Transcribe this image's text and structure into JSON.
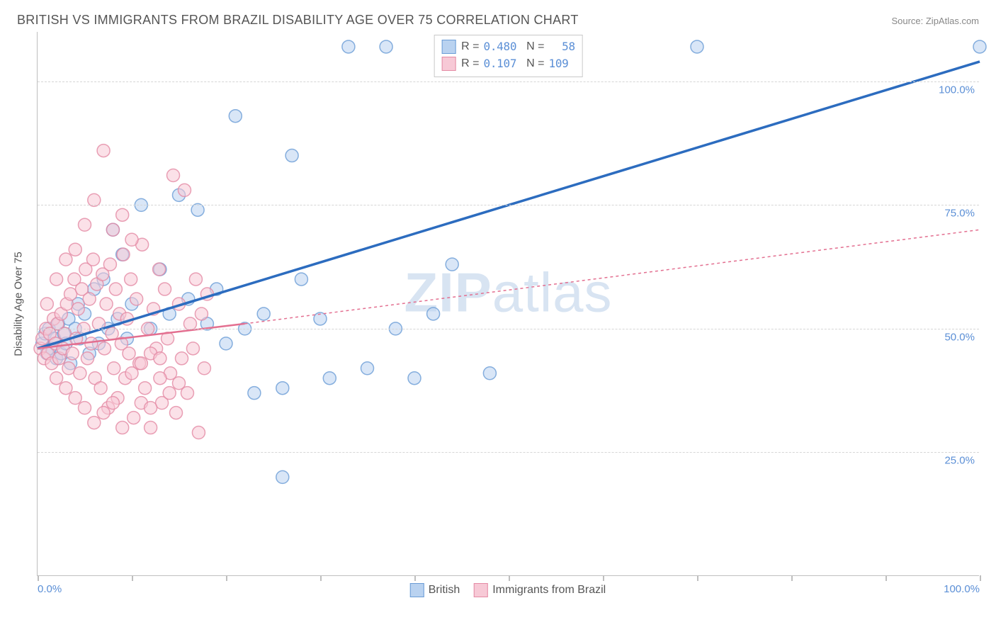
{
  "title": "BRITISH VS IMMIGRANTS FROM BRAZIL DISABILITY AGE OVER 75 CORRELATION CHART",
  "source_label": "Source: ZipAtlas.com",
  "y_axis_title": "Disability Age Over 75",
  "watermark": {
    "bold": "ZIP",
    "rest": "atlas"
  },
  "chart": {
    "type": "scatter",
    "xlim": [
      0,
      100
    ],
    "ylim": [
      0,
      110
    ],
    "yticks": [
      {
        "v": 25,
        "label": "25.0%"
      },
      {
        "v": 50,
        "label": "50.0%"
      },
      {
        "v": 75,
        "label": "75.0%"
      },
      {
        "v": 100,
        "label": "100.0%"
      }
    ],
    "xticks_at": [
      0,
      10,
      20,
      30,
      40,
      50,
      60,
      70,
      80,
      90,
      100
    ],
    "xlabels": [
      {
        "v": 0,
        "label": "0.0%"
      },
      {
        "v": 100,
        "label": "100.0%"
      }
    ],
    "background_color": "#ffffff",
    "grid_color": "#d6d6d6",
    "axis_color": "#bfbfbf",
    "marker_radius": 9,
    "marker_opacity": 0.55,
    "series": [
      {
        "name": "British",
        "color_fill": "#b9d2f0",
        "color_stroke": "#6a9cd6",
        "line_color": "#2c6cbf",
        "line_width": 3.5,
        "line_dash": "none",
        "R": "0.480",
        "N": "58",
        "trend": {
          "x0": 0,
          "y0": 46,
          "x1": 100,
          "y1": 104
        },
        "points": [
          [
            0.5,
            47
          ],
          [
            0.8,
            49
          ],
          [
            1.0,
            45
          ],
          [
            1.2,
            50
          ],
          [
            1.5,
            46
          ],
          [
            1.8,
            48
          ],
          [
            2,
            44
          ],
          [
            2.2,
            51
          ],
          [
            2.5,
            45
          ],
          [
            2.8,
            49
          ],
          [
            3,
            47
          ],
          [
            3.3,
            52
          ],
          [
            3.5,
            43
          ],
          [
            4,
            50
          ],
          [
            4.3,
            55
          ],
          [
            4.5,
            48
          ],
          [
            5,
            53
          ],
          [
            5.5,
            45
          ],
          [
            6,
            58
          ],
          [
            6.5,
            47
          ],
          [
            7,
            60
          ],
          [
            7.5,
            50
          ],
          [
            8,
            70
          ],
          [
            8.5,
            52
          ],
          [
            9,
            65
          ],
          [
            9.5,
            48
          ],
          [
            10,
            55
          ],
          [
            11,
            75
          ],
          [
            12,
            50
          ],
          [
            13,
            62
          ],
          [
            14,
            53
          ],
          [
            15,
            77
          ],
          [
            16,
            56
          ],
          [
            17,
            74
          ],
          [
            18,
            51
          ],
          [
            19,
            58
          ],
          [
            20,
            47
          ],
          [
            21,
            93
          ],
          [
            22,
            50
          ],
          [
            23,
            37
          ],
          [
            24,
            53
          ],
          [
            26,
            38
          ],
          [
            27,
            85
          ],
          [
            28,
            60
          ],
          [
            30,
            52
          ],
          [
            31,
            40
          ],
          [
            33,
            107
          ],
          [
            35,
            42
          ],
          [
            37,
            107
          ],
          [
            38,
            50
          ],
          [
            40,
            40
          ],
          [
            42,
            53
          ],
          [
            44,
            63
          ],
          [
            47,
            107
          ],
          [
            48,
            41
          ],
          [
            70,
            107
          ],
          [
            26,
            20
          ],
          [
            100,
            107
          ]
        ]
      },
      {
        "name": "Immigrants from Brazil",
        "color_fill": "#f7c9d6",
        "color_stroke": "#e48aa4",
        "line_color": "#e36f90",
        "line_width": 2.5,
        "line_dash": "4,4",
        "R": "0.107",
        "N": "109",
        "trend_solid": {
          "x0": 0,
          "y0": 46,
          "x1": 22,
          "y1": 51
        },
        "trend_dash": {
          "x0": 22,
          "y0": 51,
          "x1": 100,
          "y1": 70
        },
        "points": [
          [
            0.3,
            46
          ],
          [
            0.5,
            48
          ],
          [
            0.7,
            44
          ],
          [
            0.9,
            50
          ],
          [
            1.1,
            45
          ],
          [
            1.3,
            49
          ],
          [
            1.5,
            43
          ],
          [
            1.7,
            52
          ],
          [
            1.9,
            47
          ],
          [
            2.1,
            51
          ],
          [
            2.3,
            44
          ],
          [
            2.5,
            53
          ],
          [
            2.7,
            46
          ],
          [
            2.9,
            49
          ],
          [
            3.1,
            55
          ],
          [
            3.3,
            42
          ],
          [
            3.5,
            57
          ],
          [
            3.7,
            45
          ],
          [
            3.9,
            60
          ],
          [
            4.1,
            48
          ],
          [
            4.3,
            54
          ],
          [
            4.5,
            41
          ],
          [
            4.7,
            58
          ],
          [
            4.9,
            50
          ],
          [
            5.1,
            62
          ],
          [
            5.3,
            44
          ],
          [
            5.5,
            56
          ],
          [
            5.7,
            47
          ],
          [
            5.9,
            64
          ],
          [
            6.1,
            40
          ],
          [
            6.3,
            59
          ],
          [
            6.5,
            51
          ],
          [
            6.7,
            38
          ],
          [
            6.9,
            61
          ],
          [
            7.1,
            46
          ],
          [
            7.3,
            55
          ],
          [
            7.5,
            34
          ],
          [
            7.7,
            63
          ],
          [
            7.9,
            49
          ],
          [
            8.1,
            42
          ],
          [
            8.3,
            58
          ],
          [
            8.5,
            36
          ],
          [
            8.7,
            53
          ],
          [
            8.9,
            47
          ],
          [
            9.1,
            65
          ],
          [
            9.3,
            40
          ],
          [
            9.5,
            52
          ],
          [
            9.7,
            45
          ],
          [
            9.9,
            60
          ],
          [
            10.2,
            32
          ],
          [
            10.5,
            56
          ],
          [
            10.8,
            43
          ],
          [
            11.1,
            67
          ],
          [
            11.4,
            38
          ],
          [
            11.7,
            50
          ],
          [
            12,
            30
          ],
          [
            12.3,
            54
          ],
          [
            12.6,
            46
          ],
          [
            12.9,
            62
          ],
          [
            13.2,
            35
          ],
          [
            13.5,
            58
          ],
          [
            13.8,
            48
          ],
          [
            14.1,
            41
          ],
          [
            14.4,
            81
          ],
          [
            14.7,
            33
          ],
          [
            15,
            55
          ],
          [
            15.3,
            44
          ],
          [
            15.6,
            78
          ],
          [
            15.9,
            37
          ],
          [
            16.2,
            51
          ],
          [
            16.5,
            46
          ],
          [
            16.8,
            60
          ],
          [
            17.1,
            29
          ],
          [
            17.4,
            53
          ],
          [
            17.7,
            42
          ],
          [
            18,
            57
          ],
          [
            7,
            86
          ],
          [
            8,
            70
          ],
          [
            9,
            73
          ],
          [
            10,
            68
          ],
          [
            6,
            76
          ],
          [
            5,
            71
          ],
          [
            4,
            66
          ],
          [
            3,
            64
          ],
          [
            2,
            60
          ],
          [
            1,
            55
          ],
          [
            11,
            35
          ],
          [
            12,
            34
          ],
          [
            13,
            40
          ],
          [
            14,
            37
          ],
          [
            15,
            39
          ],
          [
            6,
            31
          ],
          [
            7,
            33
          ],
          [
            8,
            35
          ],
          [
            9,
            30
          ],
          [
            4,
            36
          ],
          [
            3,
            38
          ],
          [
            2,
            40
          ],
          [
            5,
            34
          ],
          [
            10,
            41
          ],
          [
            11,
            43
          ],
          [
            12,
            45
          ],
          [
            13,
            44
          ]
        ]
      }
    ]
  },
  "legend": {
    "rows": [
      {
        "swatch_fill": "#b9d2f0",
        "swatch_stroke": "#6a9cd6",
        "R_label": "R =",
        "R": "0.480",
        "N_label": "N =",
        "N": "  58"
      },
      {
        "swatch_fill": "#f7c9d6",
        "swatch_stroke": "#e48aa4",
        "R_label": "R =",
        "R": "0.107",
        "N_label": "N =",
        "N": "109"
      }
    ]
  },
  "bottom_legend": [
    {
      "swatch_fill": "#b9d2f0",
      "swatch_stroke": "#6a9cd6",
      "label": "British"
    },
    {
      "swatch_fill": "#f7c9d6",
      "swatch_stroke": "#e48aa4",
      "label": "Immigrants from Brazil"
    }
  ]
}
